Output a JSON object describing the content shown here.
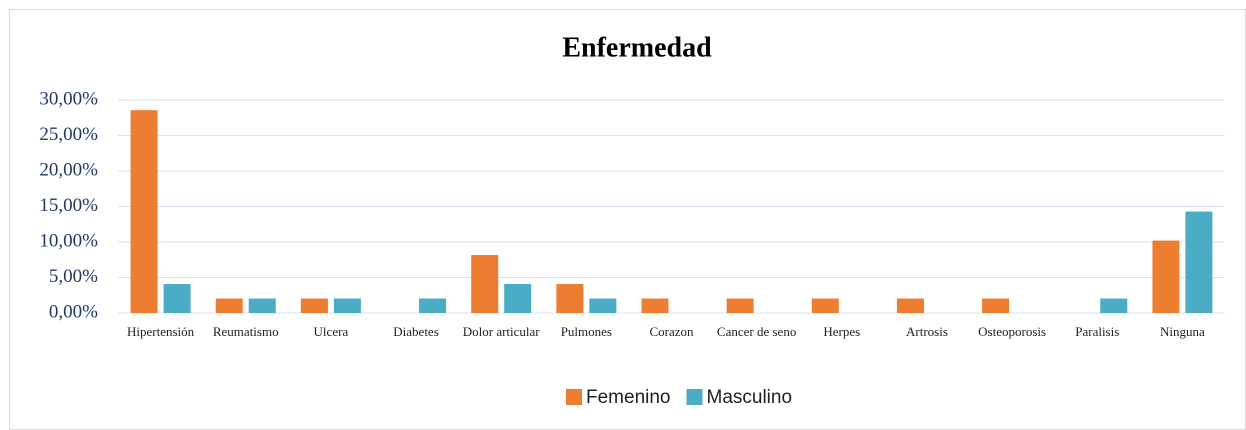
{
  "chart_data": {
    "type": "bar",
    "title": "Enfermedad",
    "categories": [
      "Hipertensión",
      "Reumatismo",
      "Ulcera",
      "Diabetes",
      "Dolor articular",
      "Pulmones",
      "Corazon",
      "Cancer de seno",
      "Herpes",
      "Artrosis",
      "Osteoporosis",
      "Paralisis",
      "Ninguna"
    ],
    "series": [
      {
        "name": "Femenino",
        "color": "#ed7d31",
        "values": [
          28.57,
          2.04,
          2.04,
          0,
          8.16,
          4.08,
          2.04,
          2.04,
          2.04,
          2.04,
          2.04,
          0,
          10.2
        ]
      },
      {
        "name": "Masculino",
        "color": "#4bacc6",
        "values": [
          4.08,
          2.04,
          2.04,
          2.04,
          4.08,
          2.04,
          0,
          0,
          0,
          0,
          0,
          2.04,
          14.29
        ]
      }
    ],
    "ylim": [
      0,
      30
    ],
    "yticks": [
      {
        "value": 0,
        "label": "0,00%"
      },
      {
        "value": 5,
        "label": "5,00%"
      },
      {
        "value": 10,
        "label": "10,00%"
      },
      {
        "value": 15,
        "label": "15,00%"
      },
      {
        "value": 20,
        "label": "20,00%"
      },
      {
        "value": 25,
        "label": "25,00%"
      },
      {
        "value": 30,
        "label": "30,00%"
      }
    ],
    "grid": true,
    "legend": "bottom"
  }
}
